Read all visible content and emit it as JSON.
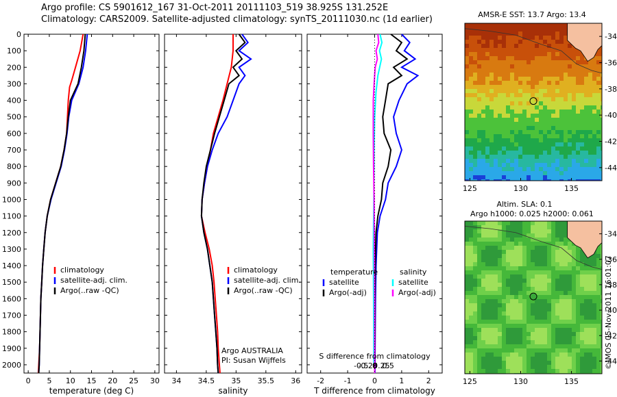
{
  "header": {
    "title_line1": "Argo profile: CS 5901612_167 31-Oct-2011 20111103_519 38.925S 131.252E",
    "title_line2": "Climatology: CARS2009. Satellite-adjusted climatology: synTS_20111030.nc (1d earlier)"
  },
  "colors": {
    "climatology": "#ff0000",
    "satellite": "#0000ff",
    "argo": "#000000",
    "argo_adj_s": "#ff00ff",
    "satellite_s": "#00ffff"
  },
  "chart_data": [
    {
      "type": "line",
      "id": "temperature",
      "xlabel": "temperature (deg C)",
      "ylabel": "",
      "xlim": [
        -1,
        31
      ],
      "ylim": [
        2050,
        0
      ],
      "xticks": [
        0,
        5,
        10,
        15,
        20,
        25,
        30
      ],
      "yticks": [
        0,
        100,
        200,
        300,
        400,
        500,
        600,
        700,
        800,
        900,
        1000,
        1100,
        1200,
        1300,
        1400,
        1500,
        1600,
        1700,
        1800,
        1900,
        2000
      ],
      "legend": [
        "climatology",
        "satellite-adj. clim.",
        "Argo(..raw -QC)"
      ],
      "legend_position": "lower-middle",
      "series": [
        {
          "name": "climatology",
          "color": "#ff0000",
          "points": [
            [
              13,
              0
            ],
            [
              12.3,
              100
            ],
            [
              11.2,
              200
            ],
            [
              10.3,
              280
            ],
            [
              9.8,
              320
            ],
            [
              9.5,
              400
            ],
            [
              9.3,
              500
            ],
            [
              9.1,
              600
            ],
            [
              8.5,
              700
            ],
            [
              7.7,
              800
            ],
            [
              6.5,
              900
            ],
            [
              5.3,
              1000
            ],
            [
              4.5,
              1100
            ],
            [
              4.0,
              1200
            ],
            [
              3.7,
              1300
            ],
            [
              3.4,
              1400
            ],
            [
              3.2,
              1500
            ],
            [
              3.0,
              1600
            ],
            [
              2.9,
              1700
            ],
            [
              2.8,
              1800
            ],
            [
              2.7,
              1900
            ],
            [
              2.5,
              2000
            ],
            [
              2.4,
              2050
            ]
          ]
        },
        {
          "name": "satellite-adj. clim.",
          "color": "#0000ff",
          "points": [
            [
              14,
              0
            ],
            [
              13.6,
              100
            ],
            [
              13.0,
              200
            ],
            [
              12.0,
              300
            ],
            [
              10.3,
              400
            ],
            [
              9.6,
              500
            ],
            [
              9.2,
              600
            ],
            [
              8.6,
              700
            ],
            [
              7.8,
              800
            ],
            [
              6.6,
              900
            ],
            [
              5.4,
              1000
            ],
            [
              4.5,
              1100
            ],
            [
              4.0,
              1200
            ],
            [
              3.7,
              1300
            ],
            [
              3.4,
              1400
            ],
            [
              3.2,
              1500
            ],
            [
              3.0,
              1600
            ],
            [
              2.9,
              1700
            ],
            [
              2.8,
              1800
            ],
            [
              2.7,
              1900
            ],
            [
              2.6,
              2000
            ],
            [
              2.5,
              2050
            ]
          ]
        },
        {
          "name": "Argo(..raw -QC)",
          "color": "#000000",
          "points": [
            [
              13.5,
              0
            ],
            [
              13.2,
              100
            ],
            [
              12.6,
              200
            ],
            [
              11.8,
              300
            ],
            [
              10.0,
              400
            ],
            [
              9.5,
              500
            ],
            [
              9.1,
              600
            ],
            [
              8.5,
              700
            ],
            [
              7.7,
              800
            ],
            [
              6.5,
              900
            ],
            [
              5.3,
              1000
            ],
            [
              4.5,
              1100
            ],
            [
              4.0,
              1200
            ],
            [
              3.7,
              1300
            ],
            [
              3.4,
              1400
            ],
            [
              3.2,
              1500
            ],
            [
              3.0,
              1600
            ],
            [
              2.9,
              1700
            ],
            [
              2.8,
              1800
            ],
            [
              2.7,
              1900
            ],
            [
              2.6,
              2000
            ],
            [
              2.5,
              2050
            ]
          ]
        }
      ]
    },
    {
      "type": "line",
      "id": "salinity",
      "xlabel": "salinity",
      "ylabel": "",
      "xlim": [
        33.8,
        36.1
      ],
      "ylim": [
        2050,
        0
      ],
      "xticks": [
        34,
        34.5,
        35,
        35.5,
        36
      ],
      "xtick_labels": [
        "34",
        "34.5",
        "35",
        "35.5",
        "36"
      ],
      "legend": [
        "climatology",
        "satellite-adj. clim.",
        "Argo(..raw -QC)"
      ],
      "legend_position": "lower-middle",
      "annotation_line1": "Argo AUSTRALIA",
      "annotation_line2": "PI: Susan Wijffels",
      "series": [
        {
          "name": "climatology",
          "color": "#ff0000",
          "points": [
            [
              34.95,
              0
            ],
            [
              34.95,
              100
            ],
            [
              34.92,
              200
            ],
            [
              34.85,
              300
            ],
            [
              34.78,
              400
            ],
            [
              34.7,
              500
            ],
            [
              34.62,
              600
            ],
            [
              34.57,
              700
            ],
            [
              34.52,
              800
            ],
            [
              34.47,
              900
            ],
            [
              34.43,
              1000
            ],
            [
              34.42,
              1100
            ],
            [
              34.48,
              1200
            ],
            [
              34.55,
              1300
            ],
            [
              34.6,
              1400
            ],
            [
              34.63,
              1500
            ],
            [
              34.65,
              1600
            ],
            [
              34.67,
              1700
            ],
            [
              34.69,
              1800
            ],
            [
              34.7,
              1900
            ],
            [
              34.72,
              2000
            ],
            [
              34.73,
              2050
            ]
          ]
        },
        {
          "name": "satellite-adj. clim.",
          "color": "#0000ff",
          "points": [
            [
              35.1,
              0
            ],
            [
              35.2,
              50
            ],
            [
              35.05,
              100
            ],
            [
              35.25,
              150
            ],
            [
              35.05,
              200
            ],
            [
              35.15,
              250
            ],
            [
              35.05,
              300
            ],
            [
              34.95,
              400
            ],
            [
              34.85,
              500
            ],
            [
              34.7,
              600
            ],
            [
              34.6,
              700
            ],
            [
              34.52,
              800
            ],
            [
              34.47,
              900
            ],
            [
              34.43,
              1000
            ],
            [
              34.42,
              1100
            ],
            [
              34.46,
              1200
            ],
            [
              34.52,
              1300
            ],
            [
              34.56,
              1400
            ],
            [
              34.6,
              1500
            ],
            [
              34.62,
              1600
            ],
            [
              34.64,
              1700
            ],
            [
              34.66,
              1800
            ],
            [
              34.68,
              1900
            ],
            [
              34.69,
              2000
            ],
            [
              34.7,
              2050
            ]
          ]
        },
        {
          "name": "Argo(..raw -QC)",
          "color": "#000000",
          "points": [
            [
              35.05,
              0
            ],
            [
              35.15,
              50
            ],
            [
              35.0,
              100
            ],
            [
              35.1,
              150
            ],
            [
              34.95,
              200
            ],
            [
              35.05,
              250
            ],
            [
              34.88,
              300
            ],
            [
              34.8,
              400
            ],
            [
              34.72,
              500
            ],
            [
              34.64,
              600
            ],
            [
              34.57,
              700
            ],
            [
              34.5,
              800
            ],
            [
              34.46,
              900
            ],
            [
              34.43,
              1000
            ],
            [
              34.42,
              1100
            ],
            [
              34.46,
              1200
            ],
            [
              34.52,
              1300
            ],
            [
              34.56,
              1400
            ],
            [
              34.6,
              1500
            ],
            [
              34.62,
              1600
            ],
            [
              34.64,
              1700
            ],
            [
              34.66,
              1800
            ],
            [
              34.68,
              1900
            ],
            [
              34.69,
              2000
            ],
            [
              34.7,
              2050
            ]
          ]
        }
      ]
    },
    {
      "type": "line",
      "id": "difference",
      "xlabel": "T difference from climatology",
      "top_axis_label": "S difference from climatology",
      "xlim": [
        -2.5,
        2.5
      ],
      "ylim": [
        2050,
        0
      ],
      "xticks": [
        -2,
        -1,
        0,
        1,
        2
      ],
      "xtick_labels": [
        "-2",
        "-1",
        "0",
        "1",
        "2"
      ],
      "s_ticks": [
        -0.5,
        -0.25,
        0,
        0.25,
        0.5
      ],
      "s_tick_labels": [
        "-0.5",
        "-0.25",
        "0",
        "0.25",
        "0.5"
      ],
      "legend_temperature_title": "temperature",
      "legend_salinity_title": "salinity",
      "legend_temperature": [
        "satellite",
        "Argo(-adj)"
      ],
      "legend_salinity": [
        "satellite",
        "Argo(-adj)"
      ],
      "series": [
        {
          "name": "satellite",
          "color": "#0000ff",
          "points": [
            [
              1.0,
              0
            ],
            [
              1.3,
              50
            ],
            [
              1.1,
              100
            ],
            [
              1.5,
              150
            ],
            [
              1.0,
              200
            ],
            [
              1.6,
              250
            ],
            [
              1.2,
              300
            ],
            [
              0.9,
              400
            ],
            [
              0.7,
              500
            ],
            [
              0.8,
              600
            ],
            [
              1.0,
              700
            ],
            [
              0.8,
              800
            ],
            [
              0.5,
              900
            ],
            [
              0.4,
              1000
            ],
            [
              0.2,
              1100
            ],
            [
              0.1,
              1200
            ],
            [
              0.05,
              1400
            ],
            [
              0.03,
              1600
            ],
            [
              0.02,
              1800
            ],
            [
              0.01,
              2050
            ]
          ]
        },
        {
          "name": "Argo(-adj)",
          "color": "#000000",
          "points": [
            [
              0.6,
              0
            ],
            [
              1.0,
              50
            ],
            [
              0.8,
              100
            ],
            [
              1.2,
              150
            ],
            [
              0.7,
              200
            ],
            [
              1.0,
              250
            ],
            [
              0.5,
              300
            ],
            [
              0.4,
              400
            ],
            [
              0.3,
              500
            ],
            [
              0.35,
              600
            ],
            [
              0.6,
              700
            ],
            [
              0.5,
              800
            ],
            [
              0.3,
              900
            ],
            [
              0.25,
              1000
            ],
            [
              0.12,
              1100
            ],
            [
              0.05,
              1200
            ],
            [
              0.02,
              1400
            ],
            [
              0.01,
              1600
            ],
            [
              0.01,
              1800
            ],
            [
              0.0,
              2050
            ]
          ]
        },
        {
          "name": "satellite (S)",
          "color": "#00ffff",
          "points": [
            [
              0.2,
              0
            ],
            [
              0.27,
              50
            ],
            [
              0.18,
              100
            ],
            [
              0.25,
              150
            ],
            [
              0.12,
              250
            ],
            [
              0.05,
              350
            ],
            [
              0.0,
              500
            ],
            [
              -0.02,
              700
            ],
            [
              -0.03,
              1000
            ],
            [
              -0.05,
              1300
            ],
            [
              -0.04,
              1600
            ],
            [
              -0.03,
              2000
            ]
          ]
        },
        {
          "name": "Argo(-adj) (S)",
          "color": "#ff00ff",
          "points": [
            [
              0.12,
              0
            ],
            [
              0.15,
              50
            ],
            [
              0.05,
              100
            ],
            [
              0.1,
              150
            ],
            [
              0.02,
              200
            ],
            [
              -0.02,
              300
            ],
            [
              -0.05,
              400
            ],
            [
              -0.05,
              600
            ],
            [
              -0.04,
              800
            ],
            [
              -0.02,
              1000
            ],
            [
              -0.01,
              1300
            ],
            [
              0.0,
              1600
            ],
            [
              0.0,
              2050
            ]
          ]
        }
      ]
    },
    {
      "type": "heatmap",
      "id": "sst_map",
      "title": "AMSR-E SST: 13.7 Argo: 13.4",
      "xlim": [
        124.5,
        138
      ],
      "ylim": [
        -45,
        -33
      ],
      "xticks": [
        125,
        130,
        135
      ],
      "yticks": [
        -34,
        -36,
        -38,
        -40,
        -42,
        -44
      ],
      "ytick_labels": [
        "-34",
        "-36",
        "-38",
        "-40",
        "-42",
        "-44"
      ],
      "marker": {
        "lon": 131.252,
        "lat": -38.925
      }
    },
    {
      "type": "heatmap",
      "id": "sla_map",
      "title_line1": "Altim. SLA: 0.1",
      "title_line2": "Argo h1000: 0.025 h2000: 0.061",
      "xlim": [
        124.5,
        138
      ],
      "ylim": [
        -45,
        -33
      ],
      "xticks": [
        125,
        130,
        135
      ],
      "yticks": [
        -34,
        -36,
        -38,
        -40,
        -42,
        -44
      ],
      "ytick_labels": [
        "-34",
        "-36",
        "-38",
        "-40",
        "-42",
        "-44"
      ],
      "marker": {
        "lon": 131.252,
        "lat": -38.925
      }
    }
  ],
  "footer": {
    "stamp": "©IMOS 05-Nov-2011 16:01:07"
  }
}
